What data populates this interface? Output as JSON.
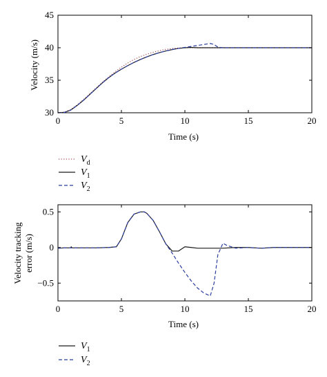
{
  "chart_data": [
    {
      "type": "line",
      "xlabel": "Time (s)",
      "ylabel": "Velocity (m/s)",
      "xlim": [
        0,
        20
      ],
      "ylim": [
        30,
        45
      ],
      "xticks": [
        0,
        5,
        10,
        15,
        20
      ],
      "yticks": [
        30,
        35,
        40,
        45
      ],
      "grid": false,
      "legend_placement": "below",
      "series": [
        {
          "name": "V_d",
          "legend_main": "V",
          "legend_sub": "d",
          "style": "dotted",
          "color": "#a44a52",
          "x": [
            0,
            0.5,
            1,
            1.5,
            2,
            2.5,
            3,
            3.5,
            4,
            4.5,
            5,
            5.5,
            6,
            6.5,
            7,
            7.5,
            8,
            8.5,
            9,
            9.5,
            10,
            10.5,
            11,
            12,
            13,
            14,
            15,
            16,
            17,
            18,
            19,
            20
          ],
          "y": [
            30,
            30.1,
            30.5,
            31.2,
            32.0,
            32.9,
            33.8,
            34.7,
            35.5,
            36.3,
            37.0,
            37.65,
            38.2,
            38.65,
            39.0,
            39.3,
            39.55,
            39.75,
            39.88,
            39.96,
            40,
            40,
            40,
            40,
            40,
            40,
            40,
            40,
            40,
            40,
            40,
            40
          ]
        },
        {
          "name": "V_1",
          "legend_main": "V",
          "legend_sub": "1",
          "style": "solid",
          "color": "#1a1a1a",
          "x": [
            0,
            0.5,
            1,
            1.5,
            2,
            2.5,
            3,
            3.5,
            4,
            4.5,
            5,
            5.5,
            6,
            6.5,
            7,
            7.5,
            8,
            8.5,
            9,
            9.5,
            10,
            10.5,
            11,
            12,
            13,
            14,
            15,
            16,
            17,
            18,
            19,
            20
          ],
          "y": [
            30,
            30.05,
            30.4,
            31.1,
            31.9,
            32.8,
            33.7,
            34.6,
            35.4,
            36.1,
            36.7,
            37.25,
            37.75,
            38.2,
            38.6,
            38.95,
            39.25,
            39.5,
            39.72,
            39.9,
            40,
            40.05,
            40,
            40,
            40,
            40,
            40,
            40,
            40,
            40,
            40,
            40
          ]
        },
        {
          "name": "V_2",
          "legend_main": "V",
          "legend_sub": "2",
          "style": "dashed",
          "color": "#2b3d9e",
          "x": [
            0,
            0.5,
            1,
            1.5,
            2,
            2.5,
            3,
            3.5,
            4,
            4.5,
            5,
            5.5,
            6,
            6.5,
            7,
            7.5,
            8,
            8.5,
            9,
            9.5,
            10,
            10.5,
            11,
            11.5,
            12,
            12.3,
            12.6,
            13,
            14,
            15,
            16,
            17,
            18,
            19,
            20
          ],
          "y": [
            30,
            30.05,
            30.4,
            31.1,
            31.9,
            32.8,
            33.7,
            34.6,
            35.4,
            36.1,
            36.7,
            37.25,
            37.75,
            38.2,
            38.6,
            38.95,
            39.25,
            39.5,
            39.72,
            39.9,
            40.05,
            40.2,
            40.35,
            40.5,
            40.65,
            40.5,
            40.1,
            40,
            40,
            40,
            40,
            40,
            40,
            40,
            40
          ]
        }
      ]
    },
    {
      "type": "line",
      "xlabel": "Time (s)",
      "ylabel_lines": [
        "Velocity tracking",
        "error (m/s)"
      ],
      "xlim": [
        0,
        20
      ],
      "ylim": [
        -0.75,
        0.6
      ],
      "xticks": [
        0,
        5,
        10,
        15,
        20
      ],
      "yticks": [
        0.5,
        0,
        -0.5
      ],
      "ytick_labels": [
        "0.5",
        "0",
        "−0.5"
      ],
      "grid": false,
      "legend_placement": "below",
      "series": [
        {
          "name": "V_1",
          "legend_main": "V",
          "legend_sub": "1",
          "style": "solid",
          "color": "#1a1a1a",
          "x": [
            0,
            0.5,
            1,
            1.05,
            1.1,
            2,
            3,
            4,
            4.6,
            5,
            5.5,
            6,
            6.5,
            6.8,
            7,
            7.5,
            8,
            8.5,
            9,
            9.5,
            10,
            10.5,
            11,
            12,
            13,
            14,
            15,
            16,
            17,
            18,
            19,
            20
          ],
          "y": [
            -0.01,
            -0.005,
            -0.005,
            0.01,
            -0.005,
            -0.005,
            -0.005,
            0,
            0.01,
            0.12,
            0.35,
            0.47,
            0.5,
            0.5,
            0.48,
            0.38,
            0.22,
            0.05,
            -0.05,
            -0.05,
            0.01,
            0,
            -0.01,
            -0.01,
            -0.01,
            0,
            0,
            -0.01,
            0,
            0,
            0,
            0
          ]
        },
        {
          "name": "V_2",
          "legend_main": "V",
          "legend_sub": "2",
          "style": "dashed",
          "color": "#2b3d9e",
          "x": [
            0,
            0.5,
            1,
            2,
            3,
            4,
            4.6,
            5,
            5.5,
            6,
            6.5,
            6.8,
            7,
            7.5,
            8,
            8.5,
            9,
            9.5,
            10,
            10.5,
            11,
            11.5,
            12,
            12.3,
            12.6,
            13,
            13.3,
            14,
            15,
            16,
            17,
            18,
            19,
            20
          ],
          "y": [
            -0.01,
            -0.005,
            -0.005,
            -0.005,
            -0.005,
            0,
            0.01,
            0.12,
            0.35,
            0.47,
            0.5,
            0.5,
            0.48,
            0.38,
            0.22,
            0.05,
            -0.08,
            -0.22,
            -0.35,
            -0.47,
            -0.57,
            -0.64,
            -0.68,
            -0.5,
            -0.1,
            0.06,
            0.03,
            -0.01,
            0,
            -0.01,
            0,
            0,
            0,
            0
          ]
        }
      ]
    }
  ]
}
